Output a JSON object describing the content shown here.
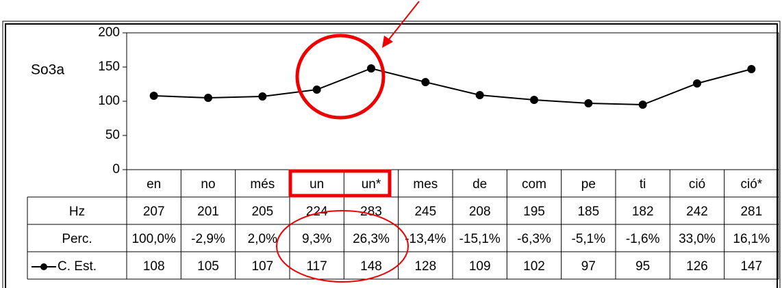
{
  "chart_data": {
    "type": "line",
    "y_label": "So3a",
    "categories": [
      "en",
      "no",
      "més",
      "un",
      "un*",
      "mes",
      "de",
      "com",
      "pe",
      "ti",
      "ció",
      "ció*"
    ],
    "series": [
      {
        "name": "C. Est.",
        "color": "#000000",
        "values": [
          108,
          105,
          107,
          117,
          148,
          128,
          109,
          102,
          97,
          95,
          126,
          147
        ]
      }
    ],
    "ylim": [
      0,
      200
    ],
    "yticks": [
      0,
      50,
      100,
      150,
      200
    ],
    "table_rows": [
      {
        "name": "Hz",
        "values": [
          207,
          201,
          205,
          224,
          283,
          245,
          208,
          195,
          185,
          182,
          242,
          281
        ]
      },
      {
        "name": "Perc.",
        "values": [
          100.0,
          -2.9,
          2.0,
          9.3,
          26.3,
          -13.4,
          -15.1,
          -6.3,
          -5.1,
          -1.6,
          33.0,
          16.1
        ],
        "value_labels": [
          "100,0%",
          "-2,9%",
          "2,0%",
          "9,3%",
          "26,3%",
          "-13,4%",
          "-15,1%",
          "-6,3%",
          "-5,1%",
          "-1,6%",
          "33,0%",
          "16,1%"
        ]
      }
    ]
  }
}
